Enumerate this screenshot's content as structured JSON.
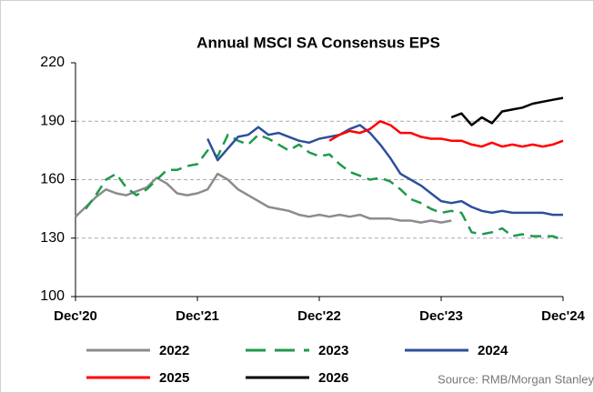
{
  "chart_data": {
    "type": "line",
    "title": "Annual MSCI SA Consensus EPS",
    "source": "Source: RMB/Morgan Stanley",
    "x": [
      0,
      1,
      2,
      3,
      4,
      5,
      6,
      7,
      8,
      9,
      10,
      11,
      12,
      13,
      14,
      15,
      16,
      17,
      18,
      19,
      20,
      21,
      22,
      23,
      24,
      25,
      26,
      27,
      28,
      29,
      30,
      31,
      32,
      33,
      34,
      35,
      36,
      37,
      38,
      39,
      40,
      41,
      42,
      43,
      44,
      45,
      46,
      47,
      48
    ],
    "xlim": [
      0,
      48
    ],
    "xticks": [
      {
        "value": 0,
        "label": "Dec'20"
      },
      {
        "value": 12,
        "label": "Dec'21"
      },
      {
        "value": 24,
        "label": "Dec'22"
      },
      {
        "value": 36,
        "label": "Dec'23"
      },
      {
        "value": 48,
        "label": "Dec'24"
      }
    ],
    "ylim": [
      100,
      220
    ],
    "yticks": [
      100,
      130,
      160,
      190,
      220
    ],
    "grid": true,
    "series": [
      {
        "name": "2022",
        "color": "#8c8c8c",
        "dash": false,
        "values": [
          141,
          146,
          151,
          155,
          153,
          152,
          154,
          156,
          161,
          158,
          153,
          152,
          153,
          155,
          163,
          160,
          155,
          152,
          149,
          146,
          145,
          144,
          142,
          141,
          142,
          141,
          142,
          141,
          142,
          140,
          140,
          140,
          139,
          139,
          138,
          139,
          138,
          139,
          null,
          null,
          null,
          null,
          null,
          null,
          null,
          null,
          null,
          null,
          null
        ]
      },
      {
        "name": "2023",
        "color": "#1e9a4b",
        "dash": true,
        "values": [
          null,
          145,
          152,
          160,
          163,
          156,
          152,
          155,
          160,
          165,
          165,
          167,
          168,
          175,
          172,
          183,
          180,
          178,
          183,
          181,
          178,
          175,
          178,
          174,
          172,
          173,
          168,
          164,
          162,
          160,
          161,
          159,
          155,
          150,
          148,
          145,
          143,
          144,
          143,
          133,
          132,
          133,
          135,
          131,
          132,
          131,
          131,
          131,
          129
        ]
      },
      {
        "name": "2024",
        "color": "#2e4f9e",
        "dash": false,
        "values": [
          null,
          null,
          null,
          null,
          null,
          null,
          null,
          null,
          null,
          null,
          null,
          null,
          null,
          181,
          170,
          176,
          182,
          183,
          187,
          183,
          184,
          182,
          180,
          179,
          181,
          182,
          183,
          186,
          188,
          184,
          178,
          171,
          163,
          160,
          157,
          153,
          149,
          148,
          149,
          146,
          144,
          143,
          144,
          143,
          143,
          143,
          143,
          142,
          142
        ]
      },
      {
        "name": "2025",
        "color": "#ff0000",
        "dash": false,
        "values": [
          null,
          null,
          null,
          null,
          null,
          null,
          null,
          null,
          null,
          null,
          null,
          null,
          null,
          null,
          null,
          null,
          null,
          null,
          null,
          null,
          null,
          null,
          null,
          null,
          null,
          180,
          183,
          185,
          184,
          186,
          190,
          188,
          184,
          184,
          182,
          181,
          181,
          180,
          180,
          178,
          177,
          179,
          177,
          178,
          177,
          178,
          177,
          178,
          180
        ]
      },
      {
        "name": "2026",
        "color": "#000000",
        "dash": false,
        "values": [
          null,
          null,
          null,
          null,
          null,
          null,
          null,
          null,
          null,
          null,
          null,
          null,
          null,
          null,
          null,
          null,
          null,
          null,
          null,
          null,
          null,
          null,
          null,
          null,
          null,
          null,
          null,
          null,
          null,
          null,
          null,
          null,
          null,
          null,
          null,
          null,
          null,
          192,
          194,
          188,
          192,
          189,
          195,
          196,
          197,
          199,
          200,
          201,
          202
        ]
      }
    ]
  }
}
